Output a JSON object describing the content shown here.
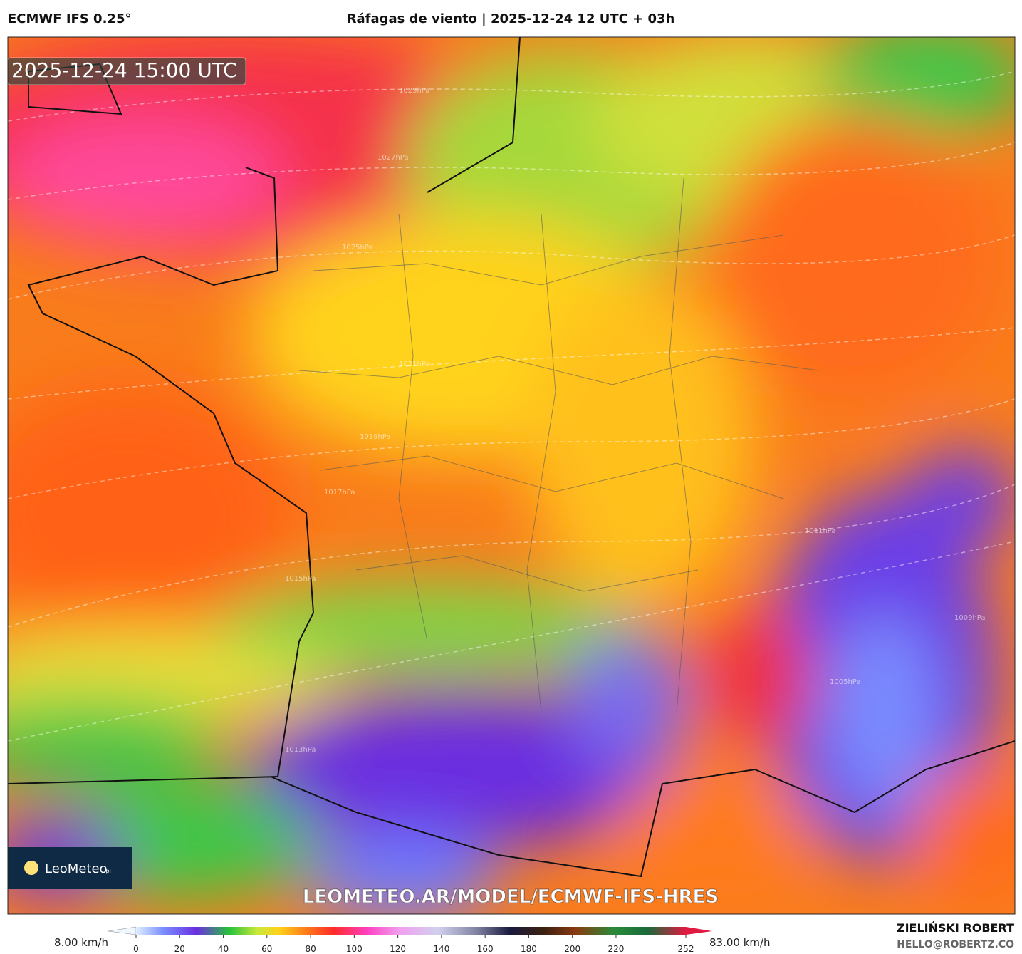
{
  "header": {
    "model": "ECMWF IFS 0.25°",
    "title": "Ráfagas de viento | 2025-12-24 12 UTC + 03h"
  },
  "map": {
    "timestamp": "2025-12-24 15:00 UTC",
    "watermark": "LEOMETEO.AR/MODEL/ECMWF-IFS-HRES",
    "logo": "LeoMeteo",
    "logo_suffix": ".pl",
    "isobars": [
      "1029hPa",
      "1027hPa",
      "1025hPa",
      "1021hPa",
      "1019hPa",
      "1017hPa",
      "1015hPa",
      "1013hPa",
      "1011hPa",
      "1009hPa",
      "1005hPa"
    ]
  },
  "legend": {
    "min_label": "8.00 km/h",
    "max_label": "83.00 km/h",
    "ticks": [
      0,
      20,
      40,
      60,
      80,
      100,
      120,
      140,
      160,
      180,
      200,
      220,
      252
    ]
  },
  "footer": {
    "author": "ZIELIŃSKI ROBERT",
    "email": "HELLO@ROBERTZ.CO"
  }
}
